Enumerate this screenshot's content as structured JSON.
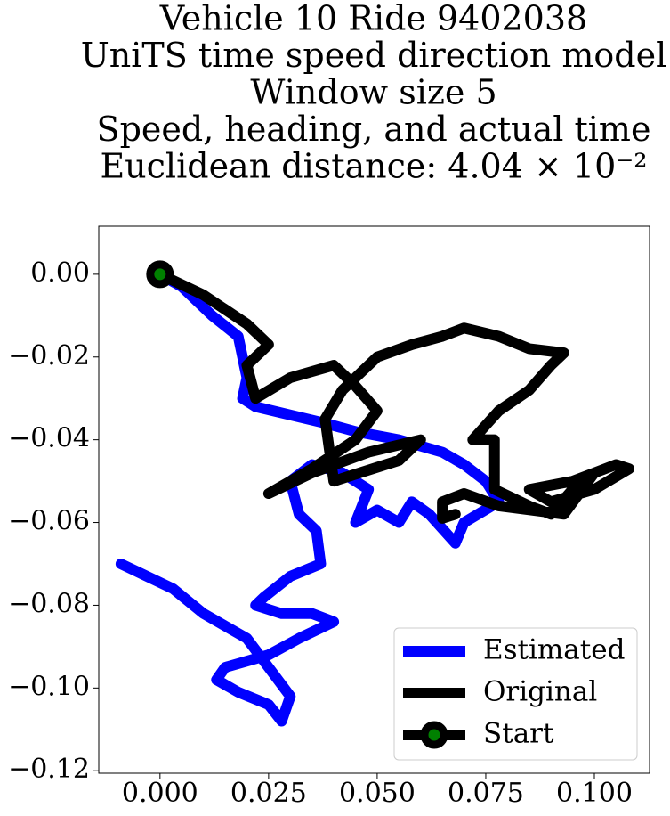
{
  "chart_data": {
    "type": "line",
    "title": [
      "Vehicle 10 Ride 9402038",
      "UniTS time speed direction model",
      "Window size 5",
      "Speed, heading, and actual time",
      "Euclidean distance: 4.04 × 10⁻²"
    ],
    "xlim": [
      -0.0141,
      0.1127
    ],
    "ylim": [
      -0.1206,
      0.0116
    ],
    "xticks": [
      {
        "value": 0,
        "label": "0.000"
      },
      {
        "value": 0.025,
        "label": "0.025"
      },
      {
        "value": 0.05,
        "label": "0.050"
      },
      {
        "value": 0.075,
        "label": "0.075"
      },
      {
        "value": 0.1,
        "label": "0.100"
      }
    ],
    "yticks": [
      {
        "value": 0,
        "label": "0.00"
      },
      {
        "value": -0.02,
        "label": "−0.02"
      },
      {
        "value": -0.04,
        "label": "−0.04"
      },
      {
        "value": -0.06,
        "label": "−0.06"
      },
      {
        "value": -0.08,
        "label": "−0.08"
      },
      {
        "value": -0.1,
        "label": "−0.10"
      },
      {
        "value": -0.12,
        "label": "−0.12"
      }
    ],
    "legend": "lower right",
    "series": [
      {
        "name": "Estimated",
        "color": "#0000ff",
        "x": [
          0,
          0.005,
          0.012,
          0.018,
          0.019,
          0.02,
          0.019,
          0.022,
          0.03,
          0.038,
          0.045,
          0.055,
          0.065,
          0.07,
          0.075,
          0.078,
          0.07,
          0.068,
          0.062,
          0.058,
          0.055,
          0.05,
          0.045,
          0.048,
          0.042,
          0.035,
          0.03,
          0.032,
          0.036,
          0.037,
          0.03,
          0.024,
          0.022,
          0.028,
          0.035,
          0.04,
          0.032,
          0.025,
          0.015,
          0.013,
          0.018,
          0.025,
          0.028,
          0.03,
          0.025,
          0.02,
          0.015,
          0.01,
          0.003,
          -0.003,
          -0.009
        ],
        "values": [
          0,
          -0.003,
          -0.01,
          -0.015,
          -0.02,
          -0.025,
          -0.03,
          -0.032,
          -0.034,
          -0.036,
          -0.038,
          -0.04,
          -0.043,
          -0.046,
          -0.05,
          -0.055,
          -0.06,
          -0.065,
          -0.058,
          -0.055,
          -0.06,
          -0.057,
          -0.06,
          -0.052,
          -0.048,
          -0.046,
          -0.05,
          -0.058,
          -0.062,
          -0.07,
          -0.073,
          -0.078,
          -0.08,
          -0.082,
          -0.082,
          -0.084,
          -0.088,
          -0.092,
          -0.095,
          -0.098,
          -0.101,
          -0.104,
          -0.108,
          -0.102,
          -0.095,
          -0.088,
          -0.085,
          -0.082,
          -0.076,
          -0.073,
          -0.07
        ]
      },
      {
        "name": "Original",
        "color": "#000000",
        "x": [
          0,
          0.01,
          0.02,
          0.025,
          0.02,
          0.022,
          0.03,
          0.04,
          0.045,
          0.05,
          0.045,
          0.035,
          0.025,
          0.035,
          0.048,
          0.06,
          0.055,
          0.04,
          0.038,
          0.042,
          0.05,
          0.058,
          0.065,
          0.07,
          0.078,
          0.085,
          0.093,
          0.09,
          0.085,
          0.078,
          0.072,
          0.077,
          0.077,
          0.085,
          0.09,
          0.095,
          0.1,
          0.105,
          0.108,
          0.1,
          0.09,
          0.085,
          0.095,
          0.1,
          0.093,
          0.078,
          0.07,
          0.065,
          0.065,
          0.068
        ],
        "values": [
          0,
          -0.005,
          -0.012,
          -0.017,
          -0.022,
          -0.03,
          -0.025,
          -0.022,
          -0.027,
          -0.033,
          -0.04,
          -0.047,
          -0.053,
          -0.048,
          -0.043,
          -0.04,
          -0.045,
          -0.05,
          -0.035,
          -0.028,
          -0.02,
          -0.017,
          -0.015,
          -0.013,
          -0.015,
          -0.018,
          -0.019,
          -0.022,
          -0.028,
          -0.033,
          -0.04,
          -0.04,
          -0.052,
          -0.056,
          -0.058,
          -0.052,
          -0.048,
          -0.046,
          -0.047,
          -0.052,
          -0.055,
          -0.052,
          -0.05,
          -0.048,
          -0.058,
          -0.056,
          -0.053,
          -0.055,
          -0.059,
          -0.058
        ]
      },
      {
        "name": "Start",
        "color": "#008000",
        "x": [
          0
        ],
        "values": [
          0
        ]
      }
    ]
  }
}
